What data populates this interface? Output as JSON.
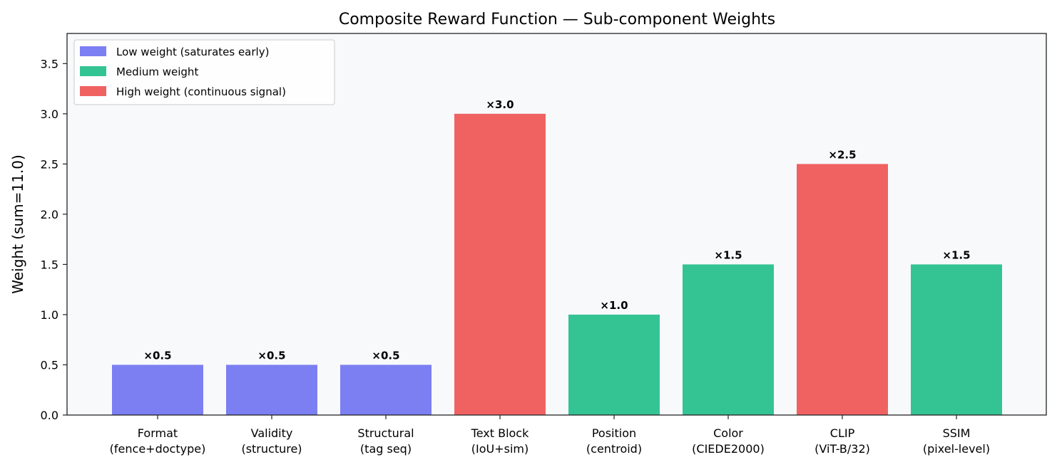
{
  "chart_data": {
    "type": "bar",
    "title": "Composite Reward Function — Sub-component Weights",
    "xlabel": "",
    "ylabel": "Weight (sum=11.0)",
    "ylim": [
      0,
      3.8
    ],
    "yticks": [
      0.0,
      0.5,
      1.0,
      1.5,
      2.0,
      2.5,
      3.0,
      3.5
    ],
    "ytick_labels": [
      "0.0",
      "0.5",
      "1.0",
      "1.5",
      "2.0",
      "2.5",
      "3.0",
      "3.5"
    ],
    "categories": [
      [
        "Format",
        "(fence+doctype)"
      ],
      [
        "Validity",
        "(structure)"
      ],
      [
        "Structural",
        "(tag seq)"
      ],
      [
        "Text Block",
        "(IoU+sim)"
      ],
      [
        "Position",
        "(centroid)"
      ],
      [
        "Color",
        "(CIEDE2000)"
      ],
      [
        "CLIP",
        "(ViT-B/32)"
      ],
      [
        "SSIM",
        "(pixel-level)"
      ]
    ],
    "values": [
      0.5,
      0.5,
      0.5,
      3.0,
      1.0,
      1.5,
      2.5,
      1.5
    ],
    "value_labels": [
      "×0.5",
      "×0.5",
      "×0.5",
      "×3.0",
      "×1.0",
      "×1.5",
      "×2.5",
      "×1.5"
    ],
    "groups": [
      "low",
      "low",
      "low",
      "high",
      "medium",
      "medium",
      "high",
      "medium"
    ],
    "legend": {
      "placement": "top-left",
      "entries": [
        {
          "key": "low",
          "label": "Low weight (saturates early)",
          "color": "#7b7ff2"
        },
        {
          "key": "medium",
          "label": "Medium weight",
          "color": "#34c493"
        },
        {
          "key": "high",
          "label": "High weight (continuous signal)",
          "color": "#f06262"
        }
      ]
    },
    "grid": false,
    "plot_background": "#f8f9fb"
  }
}
